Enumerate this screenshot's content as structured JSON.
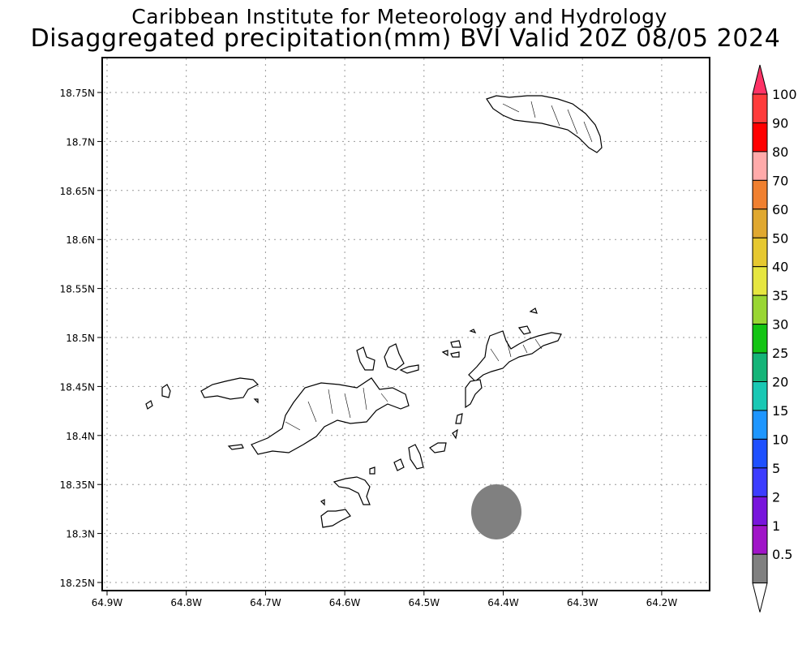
{
  "header": {
    "institute": "Caribbean Institute for Meteorology and Hydrology",
    "product": "Disaggregated precipitation(mm) BVI Valid 20Z 08/05 2024"
  },
  "map": {
    "lat_ticks": [
      "18.75N",
      "18.7N",
      "18.65N",
      "18.6N",
      "18.55N",
      "18.5N",
      "18.45N",
      "18.4N",
      "18.35N",
      "18.3N",
      "18.25N"
    ],
    "lon_ticks": [
      "64.9W",
      "64.8W",
      "64.7W",
      "64.6W",
      "64.5W",
      "64.4W",
      "64.3W",
      "64.2W"
    ],
    "grid": true,
    "precip_area": {
      "value_range": "0.5–1",
      "color": "#808080"
    }
  },
  "legend": {
    "labels": [
      "100",
      "90",
      "80",
      "70",
      "60",
      "50",
      "40",
      "35",
      "30",
      "25",
      "20",
      "15",
      "10",
      "5",
      "2",
      "1",
      "0.5"
    ],
    "colors": [
      "#ff3366",
      "#ff3b3b",
      "#ff0000",
      "#ffaaaa",
      "#f08030",
      "#e0a830",
      "#e6c830",
      "#e6e640",
      "#99d633",
      "#13c413",
      "#14b478",
      "#19c8b4",
      "#1e96ff",
      "#1e50ff",
      "#3c3cff",
      "#7814dc",
      "#a014c8",
      "#808080",
      "#ffffff"
    ]
  }
}
